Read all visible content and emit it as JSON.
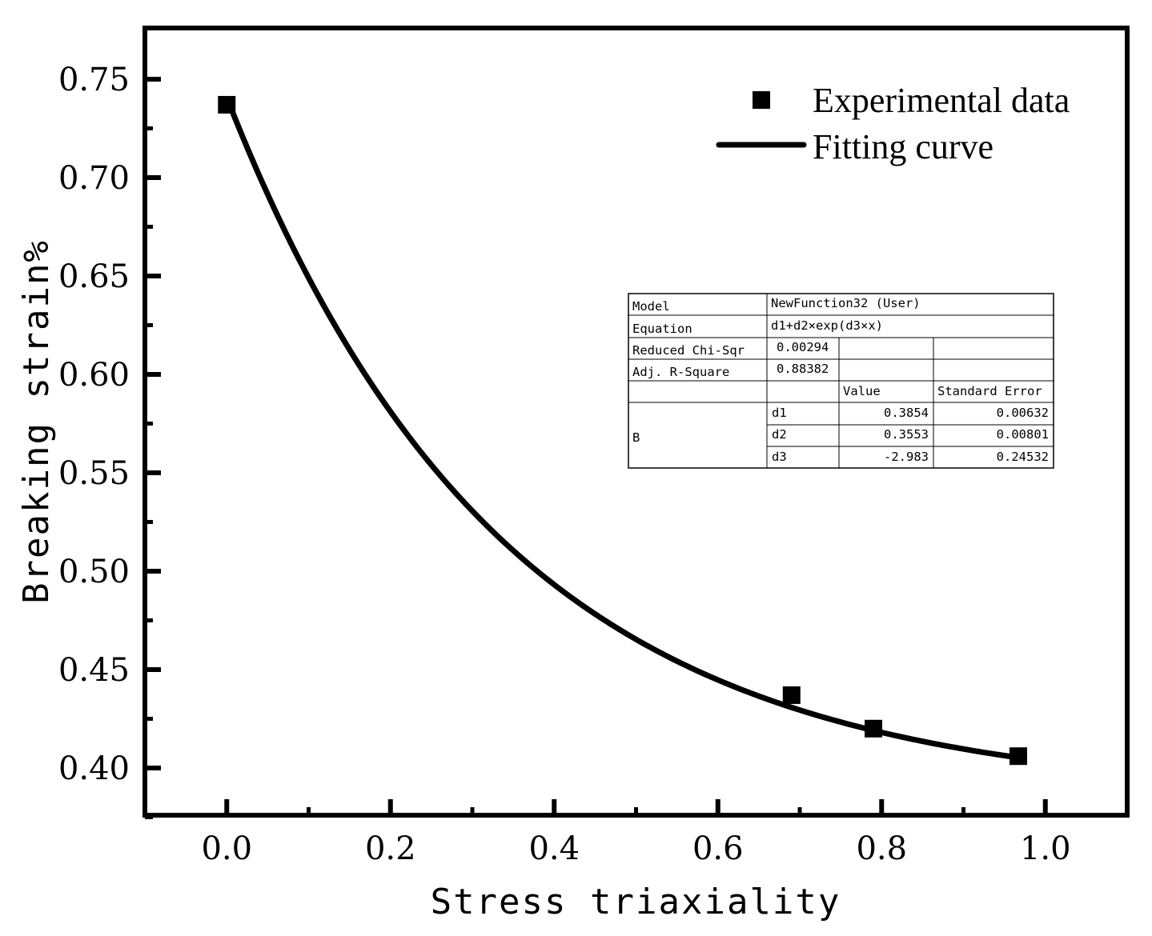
{
  "chart_data": {
    "type": "scatter",
    "xlabel": "Stress triaxiality",
    "ylabel": "Breaking strain%",
    "xlim": [
      -0.1,
      1.1
    ],
    "ylim": [
      0.376,
      0.776
    ],
    "x_ticks": [
      0.0,
      0.2,
      0.4,
      0.6,
      0.8,
      1.0
    ],
    "x_tick_labels": [
      "0.0",
      "0.2",
      "0.4",
      "0.6",
      "0.8",
      "1.0"
    ],
    "y_ticks": [
      0.4,
      0.45,
      0.5,
      0.55,
      0.6,
      0.65,
      0.7,
      0.75
    ],
    "y_tick_labels": [
      "0.40",
      "0.45",
      "0.50",
      "0.55",
      "0.60",
      "0.65",
      "0.70",
      "0.75"
    ],
    "x_minor_ticks": [
      -0.1,
      0.1,
      0.3,
      0.5,
      0.7,
      0.9,
      1.1
    ],
    "y_minor_ticks": [
      0.375,
      0.425,
      0.475,
      0.525,
      0.575,
      0.625,
      0.675,
      0.725
    ],
    "series": [
      {
        "name": "Experimental data",
        "kind": "scatter",
        "marker": "square",
        "x": [
          0.0,
          0.69,
          0.79,
          0.967
        ],
        "y": [
          0.737,
          0.437,
          0.42,
          0.406
        ]
      },
      {
        "name": "Fitting curve",
        "kind": "line",
        "function": "d1+d2*exp(d3*x)",
        "params": {
          "d1": 0.3854,
          "d2": 0.3553,
          "d3": -2.983
        },
        "x_range": [
          0.0,
          0.967
        ]
      }
    ],
    "legend": {
      "position": "top-right",
      "entries": [
        "Experimental data",
        "Fitting curve"
      ]
    },
    "fit_table": {
      "rows": [
        [
          "Model",
          "NewFunction32 (User)"
        ],
        [
          "Equation",
          "d1+d2×exp(d3×x)"
        ],
        [
          "Reduced Chi-Sqr",
          "0.00294"
        ],
        [
          "Adj. R-Square",
          "0.88382"
        ]
      ],
      "header": [
        "Value",
        "Standard Error"
      ],
      "group_label": "B",
      "params": [
        [
          "d1",
          "0.3854",
          "0.00632"
        ],
        [
          "d2",
          "0.3553",
          "0.00801"
        ],
        [
          "d3",
          "-2.983",
          "0.24532"
        ]
      ]
    }
  }
}
